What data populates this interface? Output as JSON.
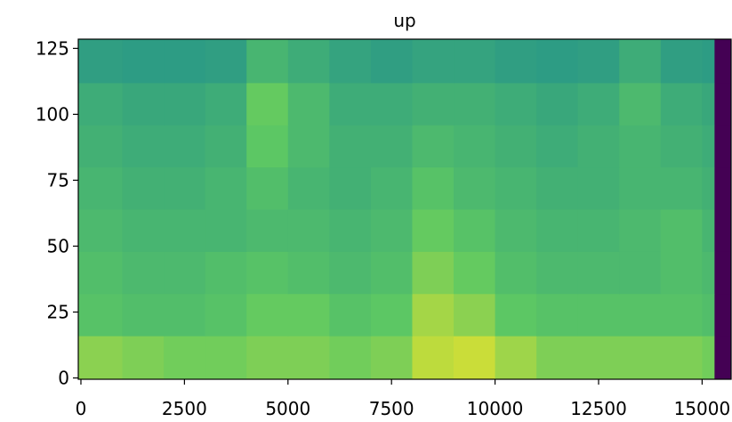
{
  "chart_data": {
    "type": "heatmap",
    "title": "up",
    "colormap": "viridis",
    "xlim": [
      -64,
      15700
    ],
    "ylim": [
      -0.5,
      128.5
    ],
    "xticks": [
      0,
      2500,
      5000,
      7500,
      10000,
      12500,
      15000
    ],
    "yticks": [
      0,
      25,
      50,
      75,
      100,
      125
    ],
    "x_bins": [
      -64,
      1000,
      2000,
      3000,
      4000,
      5000,
      6000,
      7000,
      8000,
      9000,
      10000,
      11000,
      12000,
      13000,
      14000,
      15000,
      15300,
      15700
    ],
    "y_bins": [
      -0.5,
      16,
      32,
      48,
      64,
      80,
      96,
      112,
      128.5
    ],
    "zlim": [
      0,
      1
    ],
    "z": [
      [
        0.82,
        0.8,
        0.78,
        0.78,
        0.8,
        0.8,
        0.78,
        0.8,
        0.9,
        0.92,
        0.85,
        0.8,
        0.8,
        0.8,
        0.8,
        0.78,
        0
      ],
      [
        0.72,
        0.7,
        0.7,
        0.72,
        0.76,
        0.76,
        0.72,
        0.74,
        0.86,
        0.82,
        0.74,
        0.72,
        0.72,
        0.72,
        0.72,
        0.7,
        0
      ],
      [
        0.7,
        0.68,
        0.68,
        0.7,
        0.72,
        0.7,
        0.68,
        0.7,
        0.8,
        0.76,
        0.7,
        0.68,
        0.68,
        0.68,
        0.7,
        0.68,
        0
      ],
      [
        0.68,
        0.66,
        0.66,
        0.66,
        0.68,
        0.68,
        0.66,
        0.68,
        0.76,
        0.72,
        0.68,
        0.66,
        0.66,
        0.68,
        0.7,
        0.66,
        0
      ],
      [
        0.66,
        0.64,
        0.64,
        0.66,
        0.7,
        0.66,
        0.64,
        0.66,
        0.72,
        0.68,
        0.66,
        0.64,
        0.64,
        0.66,
        0.66,
        0.64,
        0
      ],
      [
        0.64,
        0.62,
        0.62,
        0.64,
        0.74,
        0.68,
        0.64,
        0.64,
        0.68,
        0.66,
        0.64,
        0.62,
        0.64,
        0.66,
        0.64,
        0.62,
        0
      ],
      [
        0.62,
        0.6,
        0.6,
        0.62,
        0.76,
        0.68,
        0.62,
        0.62,
        0.64,
        0.64,
        0.62,
        0.6,
        0.62,
        0.68,
        0.62,
        0.6,
        0
      ],
      [
        0.56,
        0.55,
        0.55,
        0.56,
        0.66,
        0.62,
        0.58,
        0.56,
        0.58,
        0.58,
        0.56,
        0.55,
        0.56,
        0.62,
        0.56,
        0.55,
        0
      ]
    ]
  }
}
